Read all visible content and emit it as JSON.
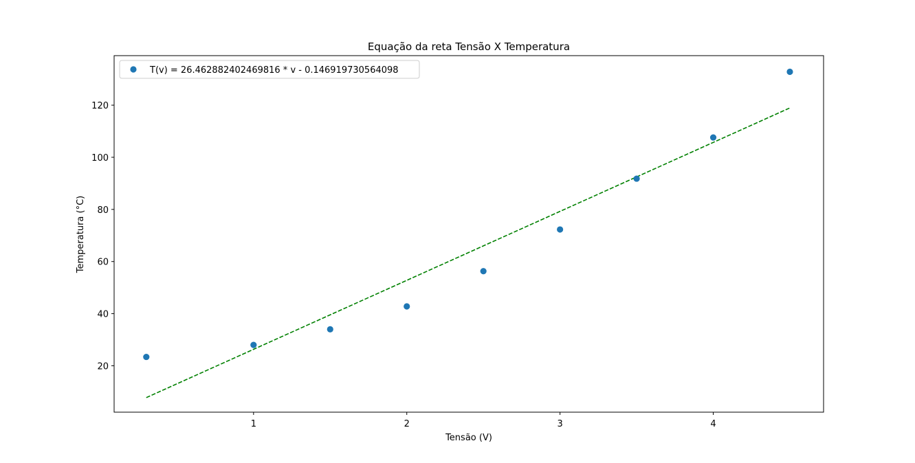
{
  "chart_data": {
    "type": "scatter",
    "title": "Equação da reta Tensão X Temperatura",
    "xlabel": "Tensão (V)",
    "ylabel": "Temperatura (°C)",
    "xlim": [
      0.09,
      4.72
    ],
    "ylim": [
      2.2,
      139
    ],
    "x_ticks": [
      1,
      2,
      3,
      4
    ],
    "y_ticks": [
      20,
      40,
      60,
      80,
      100,
      120
    ],
    "grid": false,
    "legend_position": "top-left",
    "series": [
      {
        "name": "T(v) = 26.462882402469816 * v - 0.146919730564098",
        "kind": "scatter",
        "color": "#1f77b4",
        "points": [
          {
            "x": 0.3,
            "y": 23.4
          },
          {
            "x": 1.0,
            "y": 28.0
          },
          {
            "x": 1.5,
            "y": 34.0
          },
          {
            "x": 2.0,
            "y": 42.8
          },
          {
            "x": 2.5,
            "y": 56.3
          },
          {
            "x": 3.0,
            "y": 72.3
          },
          {
            "x": 3.5,
            "y": 91.8
          },
          {
            "x": 4.0,
            "y": 107.6
          },
          {
            "x": 4.5,
            "y": 132.8
          }
        ]
      },
      {
        "kind": "fit-line",
        "color": "#008000",
        "linestyle": "dashed",
        "points": [
          {
            "x": 0.3,
            "y": 7.79
          },
          {
            "x": 4.5,
            "y": 118.94
          }
        ]
      }
    ]
  }
}
